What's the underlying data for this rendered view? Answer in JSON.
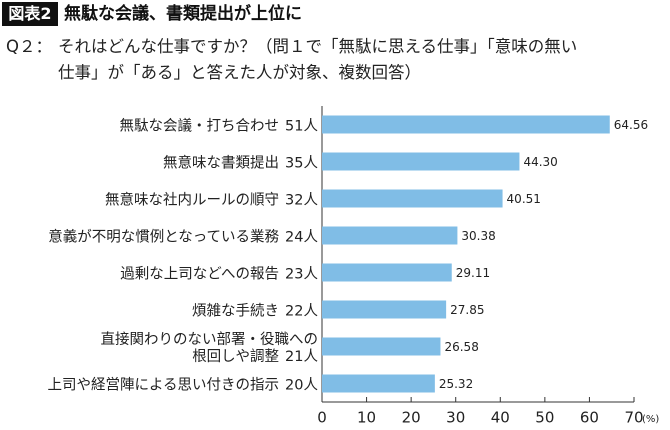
{
  "header": {
    "badge": "図表2",
    "title": "無駄な会議、書類提出が上位に"
  },
  "question": {
    "label": "Q２：",
    "lines": [
      "それはどんな仕事ですか？（問１で「無駄に思える仕事」「意味の無い",
      "仕事」が「ある」と答えた人が対象、複数回答）"
    ]
  },
  "chart_data": {
    "type": "barh",
    "categories": [
      "無駄な会議・打ち合わせ",
      "無意味な書類提出",
      "無意味な社内ルールの順守",
      "意義が不明な慣例となっている業務",
      "過剰な上司などへの報告",
      "煩雑な手続き",
      "直接関わりのない部署・役職への\n根回しや調整",
      "上司や経営陣による思い付きの指示"
    ],
    "counts": [
      "51人",
      "35人",
      "32人",
      "24人",
      "23人",
      "22人",
      "21人",
      "20人"
    ],
    "values": [
      64.56,
      44.3,
      40.51,
      30.38,
      29.11,
      27.85,
      26.58,
      25.32
    ],
    "value_labels": [
      "64.56",
      "44.30",
      "40.51",
      "30.38",
      "29.11",
      "27.85",
      "26.58",
      "25.32"
    ],
    "color": "#80bde6",
    "xlim": [
      0,
      70
    ],
    "xticks": [
      0,
      10,
      20,
      30,
      40,
      50,
      60,
      70
    ],
    "x_unit": "(%)"
  }
}
